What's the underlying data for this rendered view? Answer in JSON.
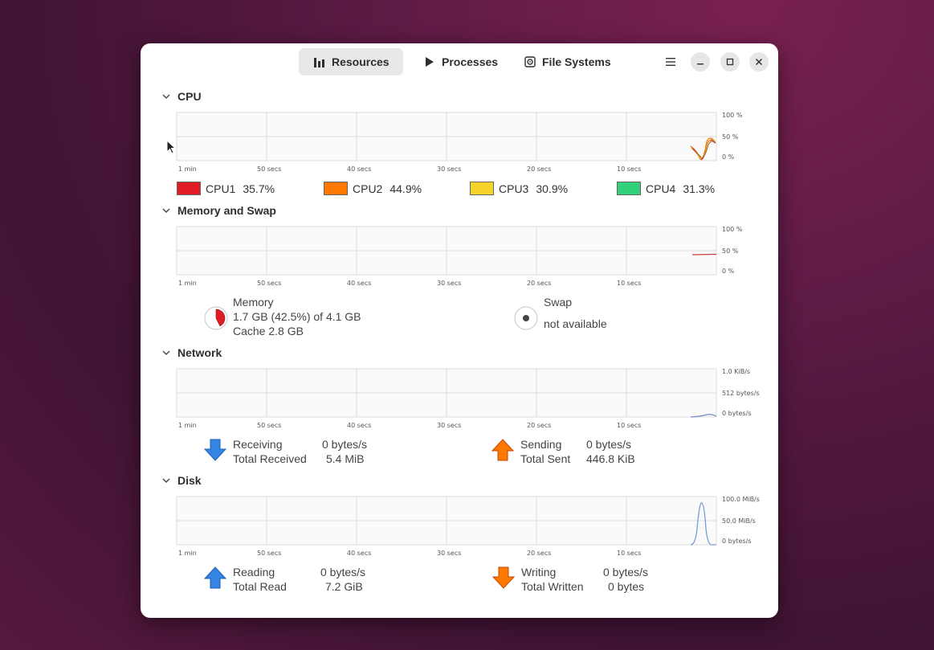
{
  "header": {
    "tabs": [
      {
        "label": "Resources",
        "active": true,
        "icon": "bar-chart-icon"
      },
      {
        "label": "Processes",
        "active": false,
        "icon": "play-icon"
      },
      {
        "label": "File Systems",
        "active": false,
        "icon": "disk-icon"
      }
    ]
  },
  "colors": {
    "cpu1": "#e01b24",
    "cpu2": "#ff7800",
    "cpu3": "#f6d32d",
    "cpu4": "#33d17a",
    "memory": "#e01b24",
    "network_line": "#6f8fc0",
    "disk_line": "#7a9cd6"
  },
  "time_ticks": [
    "1 min",
    "50 secs",
    "40 secs",
    "30 secs",
    "20 secs",
    "10 secs"
  ],
  "cpu": {
    "title": "CPU",
    "scale": [
      "100 %",
      "50 %",
      "0 %"
    ],
    "cores": [
      {
        "name": "CPU1",
        "value": "35.7%"
      },
      {
        "name": "CPU2",
        "value": "44.9%"
      },
      {
        "name": "CPU3",
        "value": "30.9%"
      },
      {
        "name": "CPU4",
        "value": "31.3%"
      }
    ]
  },
  "memory": {
    "title": "Memory and Swap",
    "scale": [
      "100 %",
      "50 %",
      "0 %"
    ],
    "memory_label": "Memory",
    "memory_usage": "1.7 GB (42.5%) of 4.1 GB",
    "cache": "Cache 2.8 GB",
    "memory_fraction": 0.425,
    "swap_label": "Swap",
    "swap_status": "not available"
  },
  "network": {
    "title": "Network",
    "scale": [
      "1.0 KiB/s",
      "512 bytes/s",
      "0 bytes/s"
    ],
    "receiving_label": "Receiving",
    "receiving_value": "0 bytes/s",
    "total_received_label": "Total Received",
    "total_received_value": "5.4 MiB",
    "sending_label": "Sending",
    "sending_value": "0 bytes/s",
    "total_sent_label": "Total Sent",
    "total_sent_value": "446.8 KiB"
  },
  "disk": {
    "title": "Disk",
    "scale": [
      "100.0 MiB/s",
      "50.0 MiB/s",
      "0 bytes/s"
    ],
    "reading_label": "Reading",
    "reading_value": "0 bytes/s",
    "total_read_label": "Total Read",
    "total_read_value": "7.2 GiB",
    "writing_label": "Writing",
    "writing_value": "0 bytes/s",
    "total_written_label": "Total Written",
    "total_written_value": "0 bytes"
  }
}
